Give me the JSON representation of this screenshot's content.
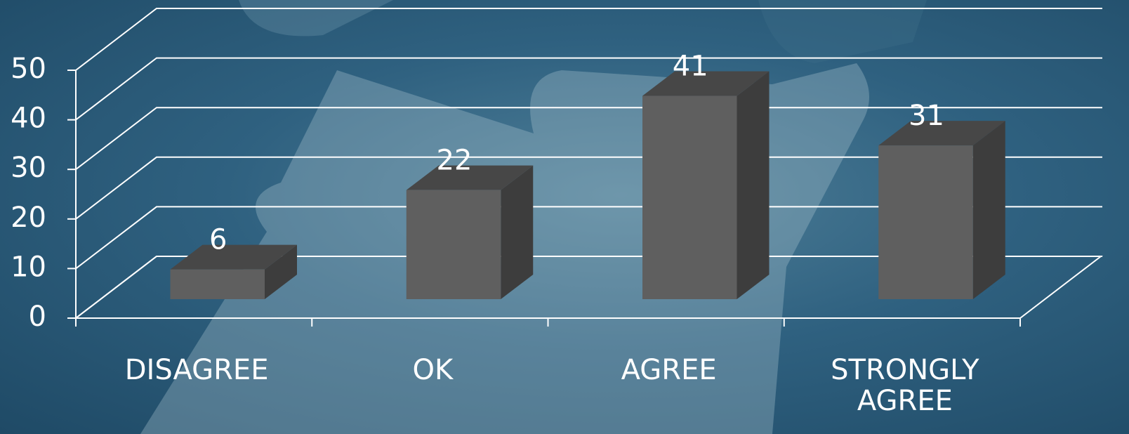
{
  "chart_data": {
    "type": "bar3d",
    "categories": [
      "DISAGREE",
      "OK",
      "AGREE",
      "STRONGLY AGREE"
    ],
    "values": [
      6,
      22,
      41,
      31
    ],
    "color": "#5f5f5f",
    "ylim": [
      0,
      50
    ],
    "yticks": [
      0,
      10,
      20,
      30,
      40,
      50
    ],
    "grid": true
  }
}
